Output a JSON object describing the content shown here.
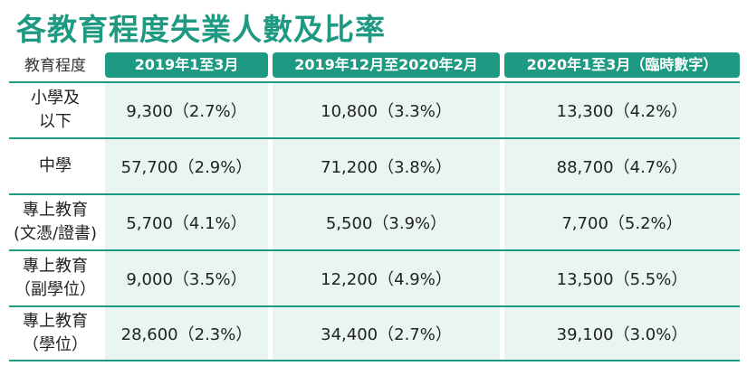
{
  "title": "各教育程度失業人數及比率",
  "table": {
    "row_header_label": "教育程度",
    "columns": [
      "2019年1至3月",
      "2019年12月至2020年2月",
      "2020年1至3月（臨時數字）"
    ],
    "rows": [
      {
        "category": "小學及\n以下",
        "values": [
          "9,300（2.7%）",
          "10,800（3.3%）",
          "13,300（4.2%）"
        ]
      },
      {
        "category": "中學",
        "values": [
          "57,700（2.9%）",
          "71,200（3.8%）",
          "88,700（4.7%）"
        ]
      },
      {
        "category": "專上教育\n(文憑/證書)",
        "values": [
          "5,700（4.1%）",
          "5,500（3.9%）",
          "7,700（5.2%）"
        ]
      },
      {
        "category": "專上教育\n（副學位）",
        "values": [
          "9,000（3.5%）",
          "12,200（4.9%）",
          "13,500（5.5%）"
        ]
      },
      {
        "category": "專上教育\n（學位）",
        "values": [
          "28,600（2.3%）",
          "34,400（2.7%）",
          "39,100（3.0%）"
        ]
      }
    ]
  },
  "colors": {
    "accent": "#1e9a82",
    "cell_background": "#e9f5f1"
  }
}
